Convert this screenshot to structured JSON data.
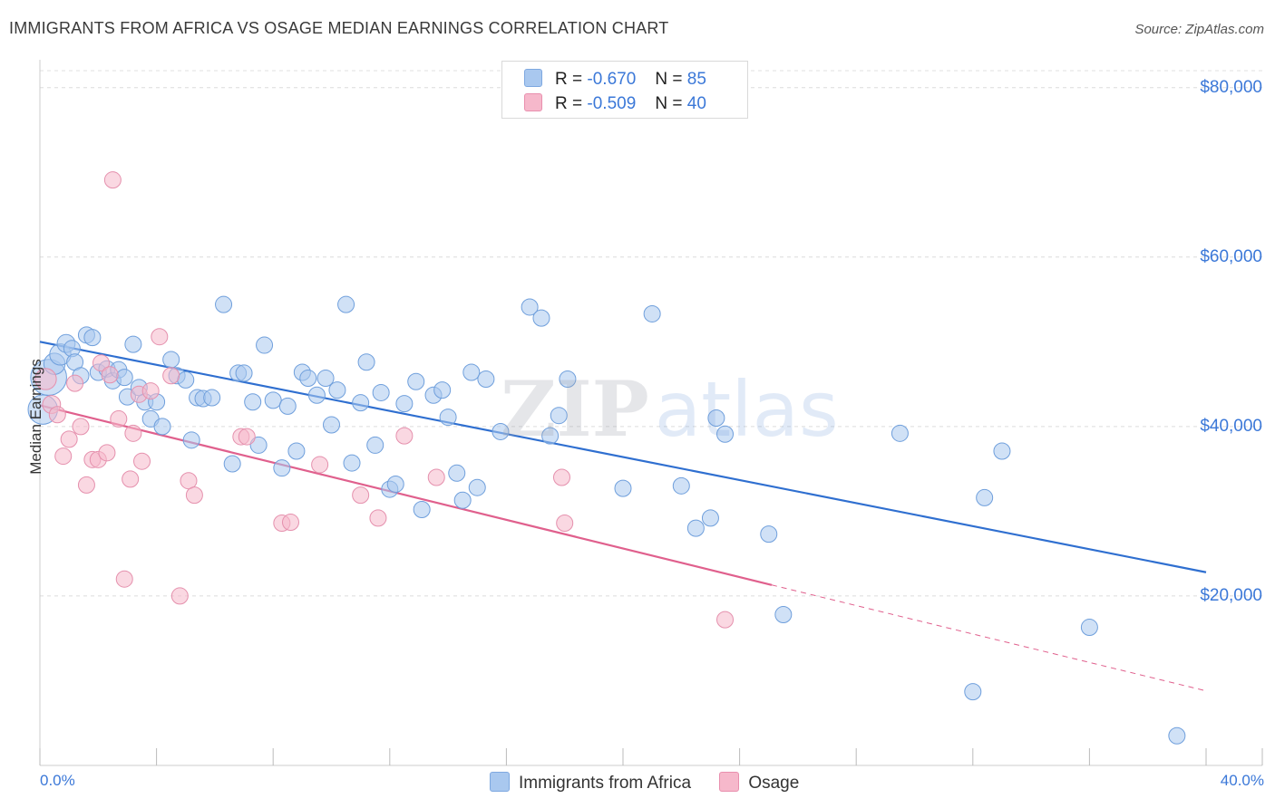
{
  "title": "IMMIGRANTS FROM AFRICA VS OSAGE MEDIAN EARNINGS CORRELATION CHART",
  "source": "Source: ZipAtlas.com",
  "watermark": {
    "part1": "ZIP",
    "part2": "atlas"
  },
  "legend": {
    "rows": [
      {
        "r_label": "R =",
        "r_value": "-0.670",
        "n_label": "N =",
        "n_value": "85",
        "color": "#a9c8ef"
      },
      {
        "r_label": "R =",
        "r_value": "-0.509",
        "n_label": "N =",
        "n_value": "40",
        "color": "#f6b8cb"
      }
    ]
  },
  "colors": {
    "blue_line": "#2f6fd0",
    "pink_line": "#e0608d",
    "blue_fill": "#a9c8ef",
    "pink_fill": "#f6b8cb",
    "axis_text": "#3b78d8"
  },
  "chart_data": {
    "type": "scatter",
    "title": "IMMIGRANTS FROM AFRICA VS OSAGE MEDIAN EARNINGS CORRELATION CHART",
    "xlabel": "",
    "ylabel": "Median Earnings",
    "xlim": [
      0,
      40
    ],
    "ylim": [
      0,
      82000
    ],
    "x_tick_labels": [
      "0.0%",
      "40.0%"
    ],
    "y_tick_labels": [
      "$20,000",
      "$40,000",
      "$60,000",
      "$80,000"
    ],
    "y_ticks": [
      20000,
      40000,
      60000,
      80000
    ],
    "grid": true,
    "legend_position": "top-center",
    "series": [
      {
        "name": "Immigrants from Africa",
        "color": "#a9c8ef",
        "trend": {
          "x": [
            0,
            40
          ],
          "y": [
            50000,
            22800
          ],
          "color": "#2f6fd0"
        },
        "points": [
          [
            0.1,
            42000,
            1.8
          ],
          [
            0.3,
            45800,
            2.2
          ],
          [
            0.5,
            47400,
            1.3
          ],
          [
            0.7,
            48500,
            1.3
          ],
          [
            0.9,
            49800,
            1.1
          ],
          [
            1.1,
            49200,
            1.0
          ],
          [
            1.2,
            47600,
            1.0
          ],
          [
            1.4,
            46000,
            1.0
          ],
          [
            1.6,
            50800,
            1.0
          ],
          [
            1.8,
            50500,
            1.0
          ],
          [
            2.0,
            46400,
            1.0
          ],
          [
            2.3,
            46800,
            1.0
          ],
          [
            2.5,
            45400,
            1.0
          ],
          [
            2.7,
            46700,
            1.0
          ],
          [
            2.9,
            45800,
            1.0
          ],
          [
            3.0,
            43500,
            1.0
          ],
          [
            3.2,
            49700,
            1.0
          ],
          [
            3.4,
            44600,
            1.0
          ],
          [
            3.6,
            42900,
            1.0
          ],
          [
            3.8,
            40900,
            1.0
          ],
          [
            4.0,
            42900,
            1.0
          ],
          [
            4.2,
            40000,
            1.0
          ],
          [
            4.5,
            47900,
            1.0
          ],
          [
            4.7,
            46000,
            1.0
          ],
          [
            5.0,
            45500,
            1.0
          ],
          [
            5.2,
            38400,
            1.0
          ],
          [
            5.4,
            43400,
            1.0
          ],
          [
            5.6,
            43300,
            1.0
          ],
          [
            5.9,
            43400,
            1.0
          ],
          [
            6.3,
            54400,
            1.0
          ],
          [
            6.6,
            35600,
            1.0
          ],
          [
            6.8,
            46300,
            1.0
          ],
          [
            7.0,
            46300,
            1.0
          ],
          [
            7.3,
            42900,
            1.0
          ],
          [
            7.5,
            37800,
            1.0
          ],
          [
            7.7,
            49600,
            1.0
          ],
          [
            8.0,
            43100,
            1.0
          ],
          [
            8.3,
            35100,
            1.0
          ],
          [
            8.5,
            42400,
            1.0
          ],
          [
            8.8,
            37100,
            1.0
          ],
          [
            9.0,
            46400,
            1.0
          ],
          [
            9.2,
            45700,
            1.0
          ],
          [
            9.5,
            43700,
            1.0
          ],
          [
            9.8,
            45700,
            1.0
          ],
          [
            10.0,
            40200,
            1.0
          ],
          [
            10.2,
            44300,
            1.0
          ],
          [
            10.5,
            54400,
            1.0
          ],
          [
            10.7,
            35700,
            1.0
          ],
          [
            11.0,
            42800,
            1.0
          ],
          [
            11.2,
            47600,
            1.0
          ],
          [
            11.5,
            37800,
            1.0
          ],
          [
            11.7,
            44000,
            1.0
          ],
          [
            12.0,
            32600,
            1.0
          ],
          [
            12.2,
            33200,
            1.0
          ],
          [
            12.5,
            42700,
            1.0
          ],
          [
            12.9,
            45300,
            1.0
          ],
          [
            13.1,
            30200,
            1.0
          ],
          [
            13.5,
            43700,
            1.0
          ],
          [
            13.8,
            44300,
            1.0
          ],
          [
            14.0,
            41100,
            1.0
          ],
          [
            14.3,
            34500,
            1.0
          ],
          [
            14.5,
            31300,
            1.0
          ],
          [
            14.8,
            46400,
            1.0
          ],
          [
            15.0,
            32800,
            1.0
          ],
          [
            15.3,
            45600,
            1.0
          ],
          [
            15.8,
            39400,
            1.0
          ],
          [
            16.8,
            54100,
            1.0
          ],
          [
            17.2,
            52800,
            1.0
          ],
          [
            17.5,
            38900,
            1.0
          ],
          [
            17.8,
            41300,
            1.0
          ],
          [
            18.1,
            45600,
            1.0
          ],
          [
            20.0,
            32700,
            1.0
          ],
          [
            21.0,
            53300,
            1.0
          ],
          [
            22.0,
            33000,
            1.0
          ],
          [
            22.5,
            28000,
            1.0
          ],
          [
            23.0,
            29200,
            1.0
          ],
          [
            23.2,
            41000,
            1.0
          ],
          [
            23.5,
            39100,
            1.0
          ],
          [
            25.0,
            27300,
            1.0
          ],
          [
            25.5,
            17800,
            1.0
          ],
          [
            29.5,
            39200,
            1.0
          ],
          [
            32.0,
            8700,
            1.0
          ],
          [
            32.4,
            31600,
            1.0
          ],
          [
            33.0,
            37100,
            1.0
          ],
          [
            36.0,
            16300,
            1.0
          ],
          [
            39.0,
            3500,
            1.0
          ]
        ]
      },
      {
        "name": "Osage",
        "color": "#f6b8cb",
        "trend": {
          "x": [
            0,
            25.1
          ],
          "y": [
            42500,
            21300
          ],
          "color": "#e0608d",
          "dashed_to": [
            40,
            8800
          ]
        },
        "points": [
          [
            0.2,
            45600,
            1.3
          ],
          [
            0.4,
            42600,
            1.1
          ],
          [
            0.6,
            41400,
            1.0
          ],
          [
            0.8,
            36500,
            1.0
          ],
          [
            1.0,
            38500,
            1.0
          ],
          [
            1.2,
            45100,
            1.0
          ],
          [
            1.4,
            40000,
            1.0
          ],
          [
            1.6,
            33100,
            1.0
          ],
          [
            1.8,
            36100,
            1.0
          ],
          [
            2.0,
            36100,
            1.0
          ],
          [
            2.1,
            47500,
            1.0
          ],
          [
            2.3,
            36900,
            1.0
          ],
          [
            2.4,
            46100,
            1.0
          ],
          [
            2.5,
            69100,
            1.0
          ],
          [
            2.7,
            40900,
            1.0
          ],
          [
            2.9,
            22000,
            1.0
          ],
          [
            3.1,
            33800,
            1.0
          ],
          [
            3.2,
            39200,
            1.0
          ],
          [
            3.4,
            43800,
            1.0
          ],
          [
            3.5,
            35900,
            1.0
          ],
          [
            3.8,
            44200,
            1.0
          ],
          [
            4.1,
            50600,
            1.0
          ],
          [
            4.5,
            46000,
            1.0
          ],
          [
            4.8,
            20000,
            1.0
          ],
          [
            5.1,
            33600,
            1.0
          ],
          [
            5.3,
            31900,
            1.0
          ],
          [
            6.9,
            38800,
            1.0
          ],
          [
            7.1,
            38800,
            1.0
          ],
          [
            8.3,
            28600,
            1.0
          ],
          [
            8.6,
            28700,
            1.0
          ],
          [
            9.6,
            35500,
            1.0
          ],
          [
            11.0,
            31900,
            1.0
          ],
          [
            11.6,
            29200,
            1.0
          ],
          [
            12.5,
            38900,
            1.0
          ],
          [
            13.6,
            34000,
            1.0
          ],
          [
            17.9,
            34000,
            1.0
          ],
          [
            18.0,
            28600,
            1.0
          ],
          [
            23.5,
            17200,
            1.0
          ]
        ]
      }
    ]
  }
}
